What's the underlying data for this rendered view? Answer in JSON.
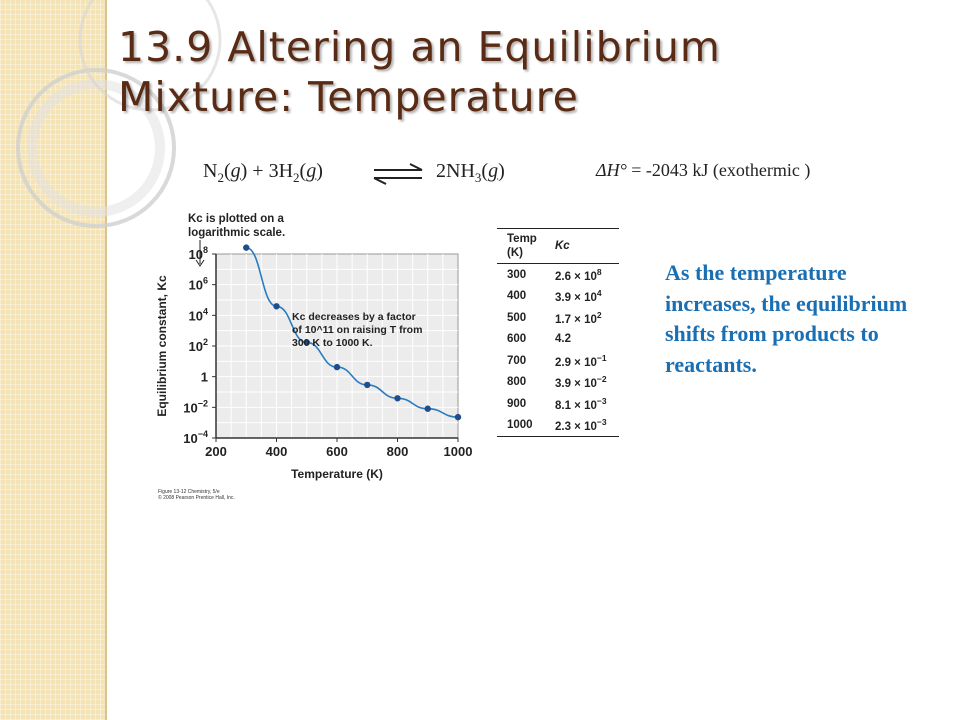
{
  "slide": {
    "title_line1": "13.9 Altering an Equilibrium",
    "title_line2": "Mixture: Temperature",
    "reaction": {
      "n2": "N",
      "n2_sub": "2",
      "g1": "g",
      "plus": "+ 3H",
      "h2_sub": "2",
      "g2": "g",
      "nh3": "2NH",
      "nh3_sub": "3",
      "g3": "g"
    },
    "enthalpy": {
      "symbol": "ΔH°",
      "rest": "= -2043 kJ  (exothermic )"
    },
    "explanation": "As the temperature increases, the equilibrium shifts from products to reactants.",
    "credit_line1": "Figure 13-12 Chemistry, 5/e",
    "credit_line2": "© 2008 Pearson Prentice Hall, Inc.",
    "colors": {
      "title": "#5a2b14",
      "sidebar": "#f4e3b5",
      "explanation": "#1a6fb3",
      "curve": "#2a7bbf"
    }
  },
  "table": {
    "headers": [
      "Temp (K)",
      "Kc"
    ],
    "rows": [
      {
        "temp": "300",
        "mant": "2.6 × 10",
        "exp": "8"
      },
      {
        "temp": "400",
        "mant": "3.9 × 10",
        "exp": "4"
      },
      {
        "temp": "500",
        "mant": "1.7 × 10",
        "exp": "2"
      },
      {
        "temp": "600",
        "mant": "4.2",
        "exp": ""
      },
      {
        "temp": "700",
        "mant": "2.9 × 10",
        "exp": "−1"
      },
      {
        "temp": "800",
        "mant": "3.9 × 10",
        "exp": "−2"
      },
      {
        "temp": "900",
        "mant": "8.1 × 10",
        "exp": "−3"
      },
      {
        "temp": "1000",
        "mant": "2.3 × 10",
        "exp": "−3"
      }
    ]
  },
  "chart_data": {
    "type": "scatter",
    "xlabel": "Temperature (K)",
    "ylabel": "Equilibrium constant, Kc",
    "log_y": true,
    "xlim": [
      200,
      1000
    ],
    "ylim_log10": [
      -4,
      8
    ],
    "x_ticks": [
      "200",
      "400",
      "600",
      "800",
      "1000"
    ],
    "y_ticks": [
      {
        "base": "10",
        "exp": "8"
      },
      {
        "base": "10",
        "exp": "6"
      },
      {
        "base": "10",
        "exp": "4"
      },
      {
        "base": "10",
        "exp": "2"
      },
      {
        "base": "1",
        "exp": ""
      },
      {
        "base": "10",
        "exp": "-2"
      },
      {
        "base": "10",
        "exp": "-4"
      }
    ],
    "grid": true,
    "points": [
      {
        "x": 300,
        "y": 260000000.0
      },
      {
        "x": 400,
        "y": 39000.0
      },
      {
        "x": 500,
        "y": 170
      },
      {
        "x": 600,
        "y": 4.2
      },
      {
        "x": 700,
        "y": 0.29
      },
      {
        "x": 800,
        "y": 0.039
      },
      {
        "x": 900,
        "y": 0.0081
      },
      {
        "x": 1000,
        "y": 0.0023
      }
    ],
    "annotation_top": [
      "Kc is plotted on a",
      "logarithmic scale."
    ],
    "annotation_mid": [
      "Kc decreases by a factor",
      "of 10^11 on raising T from",
      "300 K to 1000 K."
    ]
  }
}
